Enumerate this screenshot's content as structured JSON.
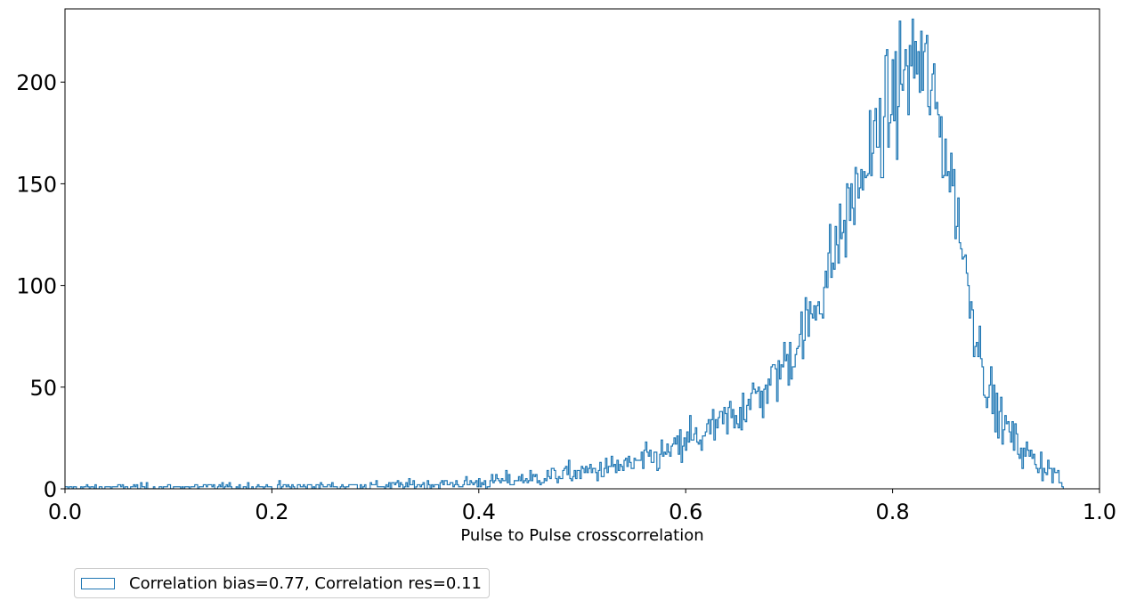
{
  "chart_data": {
    "type": "histogram-step",
    "xlabel": "Pulse to Pulse crosscorrelation",
    "ylabel": "",
    "xlim": [
      0.0,
      1.0
    ],
    "ylim": [
      0,
      236
    ],
    "x_ticks": [
      "0.0",
      "0.2",
      "0.4",
      "0.6",
      "0.8",
      "1.0"
    ],
    "y_ticks": [
      "0",
      "50",
      "100",
      "150",
      "200"
    ],
    "color": "#1f77b4",
    "series": [
      {
        "name": "Correlation bias=0.77, Correlation res=0.11",
        "profile": {
          "x": [
            0.0,
            0.1,
            0.2,
            0.3,
            0.35,
            0.4,
            0.45,
            0.5,
            0.55,
            0.58,
            0.6,
            0.62,
            0.65,
            0.68,
            0.7,
            0.72,
            0.74,
            0.76,
            0.78,
            0.8,
            0.81,
            0.82,
            0.83,
            0.84,
            0.85,
            0.86,
            0.87,
            0.88,
            0.89,
            0.9,
            0.92,
            0.94,
            0.95,
            0.96,
            0.965
          ],
          "y": [
            0.5,
            0.8,
            1,
            1.5,
            2,
            3,
            5,
            8,
            12,
            17,
            22,
            27,
            37,
            50,
            65,
            82,
            110,
            140,
            165,
            190,
            203,
            210,
            207,
            190,
            170,
            145,
            110,
            80,
            55,
            38,
            22,
            13,
            10,
            6,
            0
          ]
        },
        "bins": 700,
        "x_start": 0.0,
        "x_end": 0.965,
        "notable_peaks": [
          {
            "x": 0.828,
            "y": 225
          },
          {
            "x": 0.822,
            "y": 220
          },
          {
            "x": 0.605,
            "y": 36
          },
          {
            "x": 0.656,
            "y": 47
          }
        ]
      }
    ],
    "legend": {
      "placement": "below-left",
      "label": "Correlation bias=0.77, Correlation res=0.11"
    }
  }
}
